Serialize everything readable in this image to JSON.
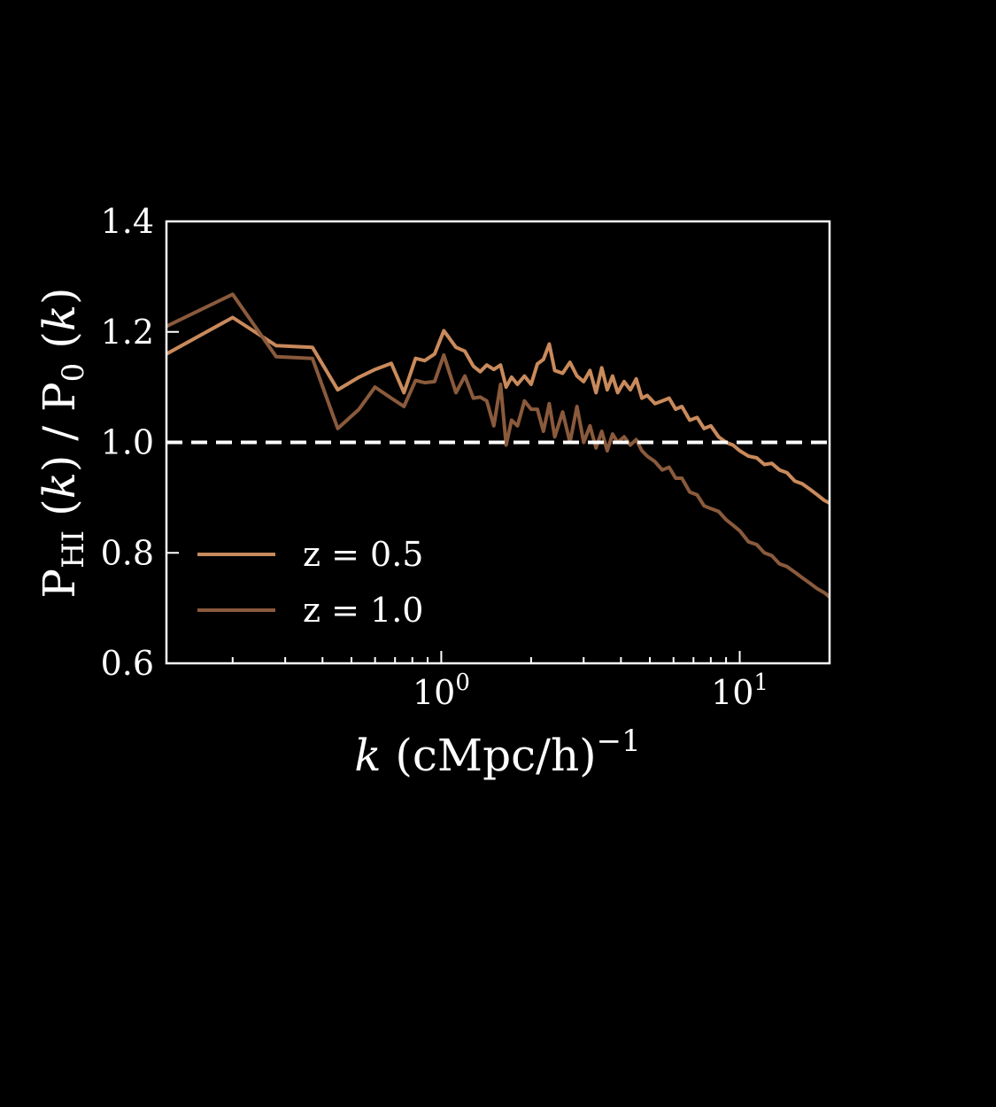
{
  "colors": {
    "background": "#000000",
    "axes": "#ffffff",
    "reference_line": "#ffffff"
  },
  "chart_data": {
    "type": "line",
    "xlabel": {
      "italic": "k",
      "text": " (cMpc/h)",
      "sup": "−1"
    },
    "ylabel": {
      "p_hi": "P",
      "hi_sub": "HI",
      "mid": " (",
      "k": "k",
      "div": ") / P",
      "zero_sub": "0",
      "tail": " (",
      "end": ")"
    },
    "xscale": "log",
    "xlim": [
      0.12,
      20
    ],
    "ylim": [
      0.6,
      1.4
    ],
    "xticks": [
      {
        "base": "10",
        "exp": "0",
        "value": 1
      },
      {
        "base": "10",
        "exp": "1",
        "value": 10
      }
    ],
    "yticks": [
      "0.6",
      "0.8",
      "1.0",
      "1.2",
      "1.4"
    ],
    "reference_line": {
      "y": 1.0,
      "style": "dashed"
    },
    "legend": {
      "placement": "lower-left"
    },
    "series": [
      {
        "name": "z = 0.5",
        "color": "#c98a5c",
        "x": [
          0.12,
          0.2,
          0.28,
          0.37,
          0.45,
          0.53,
          0.6,
          0.68,
          0.75,
          0.82,
          0.88,
          0.95,
          1.02,
          1.06,
          1.12,
          1.2,
          1.28,
          1.35,
          1.42,
          1.5,
          1.58,
          1.65,
          1.72,
          1.8,
          1.9,
          2.0,
          2.1,
          2.2,
          2.3,
          2.4,
          2.55,
          2.7,
          2.85,
          3.0,
          3.15,
          3.3,
          3.45,
          3.6,
          3.75,
          3.9,
          4.1,
          4.3,
          4.5,
          4.7,
          4.9,
          5.2,
          5.5,
          5.8,
          6.1,
          6.4,
          6.8,
          7.2,
          7.6,
          8.0,
          8.5,
          9.0,
          9.5,
          10.0,
          10.7,
          11.4,
          12.1,
          12.8,
          13.6,
          14.4,
          15.3,
          16.2,
          17.2,
          18.2,
          19.2,
          20.0
        ],
        "y": [
          1.16,
          1.226,
          1.175,
          1.172,
          1.095,
          1.118,
          1.132,
          1.143,
          1.09,
          1.152,
          1.148,
          1.16,
          1.202,
          1.19,
          1.172,
          1.165,
          1.138,
          1.128,
          1.14,
          1.132,
          1.14,
          1.1,
          1.118,
          1.105,
          1.12,
          1.105,
          1.142,
          1.15,
          1.178,
          1.13,
          1.125,
          1.145,
          1.12,
          1.11,
          1.13,
          1.09,
          1.135,
          1.095,
          1.12,
          1.09,
          1.11,
          1.095,
          1.115,
          1.08,
          1.085,
          1.07,
          1.075,
          1.08,
          1.06,
          1.065,
          1.04,
          1.045,
          1.025,
          1.03,
          1.01,
          1.0,
          0.995,
          0.985,
          0.975,
          0.972,
          0.96,
          0.962,
          0.95,
          0.945,
          0.93,
          0.925,
          0.915,
          0.905,
          0.895,
          0.89
        ]
      },
      {
        "name": "z = 1.0",
        "color": "#8a5a3c",
        "x": [
          0.12,
          0.2,
          0.28,
          0.37,
          0.45,
          0.53,
          0.6,
          0.68,
          0.75,
          0.82,
          0.88,
          0.95,
          1.02,
          1.06,
          1.12,
          1.2,
          1.28,
          1.35,
          1.42,
          1.5,
          1.58,
          1.65,
          1.72,
          1.8,
          1.9,
          2.0,
          2.1,
          2.2,
          2.3,
          2.4,
          2.55,
          2.7,
          2.85,
          3.0,
          3.15,
          3.3,
          3.45,
          3.6,
          3.75,
          3.9,
          4.1,
          4.3,
          4.5,
          4.7,
          4.9,
          5.2,
          5.5,
          5.8,
          6.1,
          6.4,
          6.8,
          7.2,
          7.6,
          8.0,
          8.5,
          9.0,
          9.5,
          10.0,
          10.7,
          11.4,
          12.1,
          12.8,
          13.6,
          14.4,
          15.3,
          16.2,
          17.2,
          18.2,
          19.2,
          20.0
        ],
        "y": [
          1.21,
          1.268,
          1.155,
          1.152,
          1.025,
          1.06,
          1.1,
          1.08,
          1.065,
          1.112,
          1.108,
          1.11,
          1.158,
          1.13,
          1.09,
          1.12,
          1.08,
          1.082,
          1.075,
          1.03,
          1.105,
          0.995,
          1.04,
          1.03,
          1.075,
          1.06,
          1.06,
          1.02,
          1.07,
          1.01,
          1.055,
          1.0,
          1.065,
          1.0,
          1.03,
          0.99,
          1.02,
          0.985,
          1.015,
          1.0,
          1.01,
          0.995,
          1.005,
          0.985,
          0.975,
          0.965,
          0.95,
          0.955,
          0.935,
          0.935,
          0.91,
          0.905,
          0.885,
          0.88,
          0.875,
          0.86,
          0.85,
          0.84,
          0.82,
          0.815,
          0.8,
          0.795,
          0.78,
          0.775,
          0.765,
          0.755,
          0.745,
          0.735,
          0.728,
          0.72
        ]
      }
    ]
  }
}
